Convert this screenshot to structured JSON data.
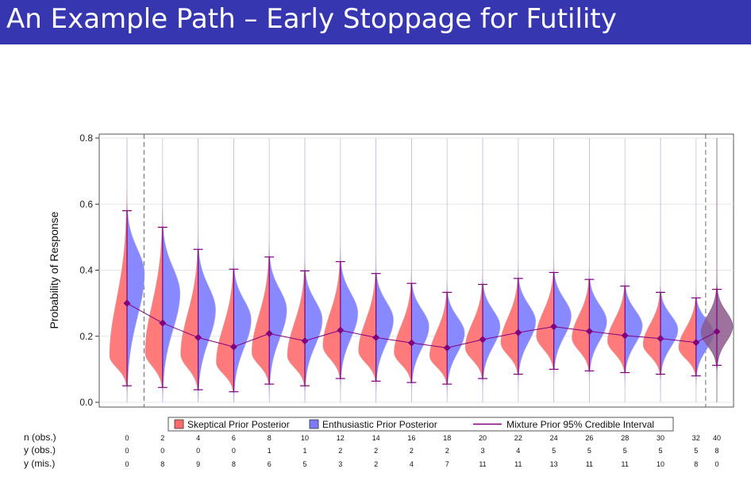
{
  "slide": {
    "title": "An Example Path – Early Stoppage for Futility"
  },
  "chart_data": {
    "type": "violin",
    "ylabel": "Probability of Response",
    "ylim": [
      0,
      0.8
    ],
    "yticks": [
      "0.0",
      "0.2",
      "0.4",
      "0.6",
      "0.8"
    ],
    "grid": true,
    "legend_placement": "bottom",
    "legend": [
      {
        "name": "Skeptical Prior Posterior",
        "color": "#ff6b6b"
      },
      {
        "name": "Enthusiastic Prior Posterior",
        "color": "#7b7bff"
      },
      {
        "name": "Mixture Prior 95% Credible Interval",
        "color": "#800080"
      }
    ],
    "colors": {
      "skeptical": "#ff6b6b",
      "enthusiastic": "#7b7bff",
      "mixture": "#800080",
      "final_mode": "#8c5a8c"
    },
    "mixture_mean": [
      0.3,
      0.24,
      0.196,
      0.168,
      0.208,
      0.186,
      0.218,
      0.196,
      0.18,
      0.165,
      0.19,
      0.211,
      0.229,
      0.215,
      0.202,
      0.193,
      0.181,
      0.214
    ],
    "ci_low": [
      0.05,
      0.045,
      0.038,
      0.032,
      0.055,
      0.05,
      0.072,
      0.064,
      0.06,
      0.055,
      0.072,
      0.085,
      0.1,
      0.095,
      0.09,
      0.085,
      0.08,
      0.112
    ],
    "ci_high": [
      0.58,
      0.53,
      0.463,
      0.403,
      0.44,
      0.398,
      0.426,
      0.39,
      0.36,
      0.333,
      0.357,
      0.375,
      0.393,
      0.372,
      0.352,
      0.333,
      0.316,
      0.342
    ],
    "skeptical_mode": [
      0.14,
      0.15,
      0.145,
      0.12,
      0.15,
      0.14,
      0.17,
      0.155,
      0.15,
      0.14,
      0.165,
      0.18,
      0.2,
      0.195,
      0.185,
      0.175,
      0.165,
      0.21
    ],
    "enthusiastic_mode": [
      0.39,
      0.33,
      0.28,
      0.25,
      0.28,
      0.25,
      0.27,
      0.25,
      0.23,
      0.21,
      0.23,
      0.245,
      0.262,
      0.245,
      0.232,
      0.22,
      0.21,
      0.23
    ],
    "dividers_after_index": [
      0,
      16
    ],
    "final_look_index": 17
  },
  "table": {
    "row_labels": [
      "n (obs.)",
      "y (obs.)",
      "y (mis.)"
    ],
    "n_obs": [
      "0",
      "2",
      "4",
      "6",
      "8",
      "10",
      "12",
      "14",
      "16",
      "18",
      "20",
      "22",
      "24",
      "26",
      "28",
      "30",
      "32",
      "40"
    ],
    "y_obs": [
      "0",
      "0",
      "0",
      "0",
      "1",
      "1",
      "2",
      "2",
      "2",
      "2",
      "3",
      "4",
      "5",
      "5",
      "5",
      "5",
      "5",
      "8"
    ],
    "y_mis": [
      "0",
      "8",
      "9",
      "8",
      "6",
      "5",
      "3",
      "2",
      "4",
      "7",
      "11",
      "11",
      "13",
      "11",
      "11",
      "10",
      "8",
      "0"
    ]
  }
}
